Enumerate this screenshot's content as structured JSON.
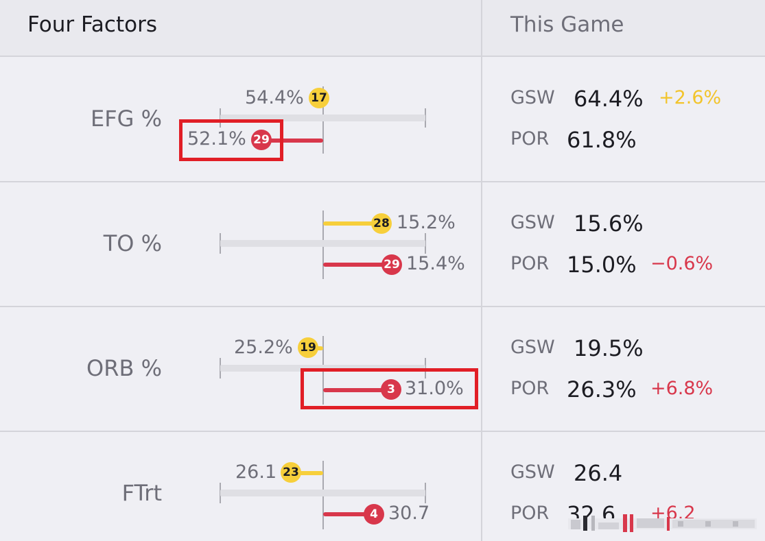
{
  "header": {
    "title": "Four Factors",
    "compare_title": "This Game"
  },
  "colors": {
    "gsw": "#f7cf3b",
    "por": "#d8374b",
    "highlight": "#e11e26"
  },
  "factors": [
    {
      "label": "EFG %",
      "gsw": {
        "bar_value": "54.4%",
        "rank": "17",
        "game_value": "64.4%",
        "diff": "+2.6%"
      },
      "por": {
        "bar_value": "52.1%",
        "rank": "29",
        "game_value": "61.8%",
        "diff": ""
      }
    },
    {
      "label": "TO %",
      "gsw": {
        "bar_value": "15.2%",
        "rank": "28",
        "game_value": "15.6%",
        "diff": ""
      },
      "por": {
        "bar_value": "15.4%",
        "rank": "29",
        "game_value": "15.0%",
        "diff": "−0.6%"
      }
    },
    {
      "label": "ORB %",
      "gsw": {
        "bar_value": "25.2%",
        "rank": "19",
        "game_value": "19.5%",
        "diff": ""
      },
      "por": {
        "bar_value": "31.0%",
        "rank": "3",
        "game_value": "26.3%",
        "diff": "+6.8%"
      }
    },
    {
      "label": "FTrt",
      "gsw": {
        "bar_value": "26.1",
        "rank": "23",
        "game_value": "26.4",
        "diff": ""
      },
      "por": {
        "bar_value": "30.7",
        "rank": "4",
        "game_value": "32.6",
        "diff": "+6.2"
      }
    }
  ],
  "team_names": {
    "gsw": "GSW",
    "por": "POR"
  }
}
